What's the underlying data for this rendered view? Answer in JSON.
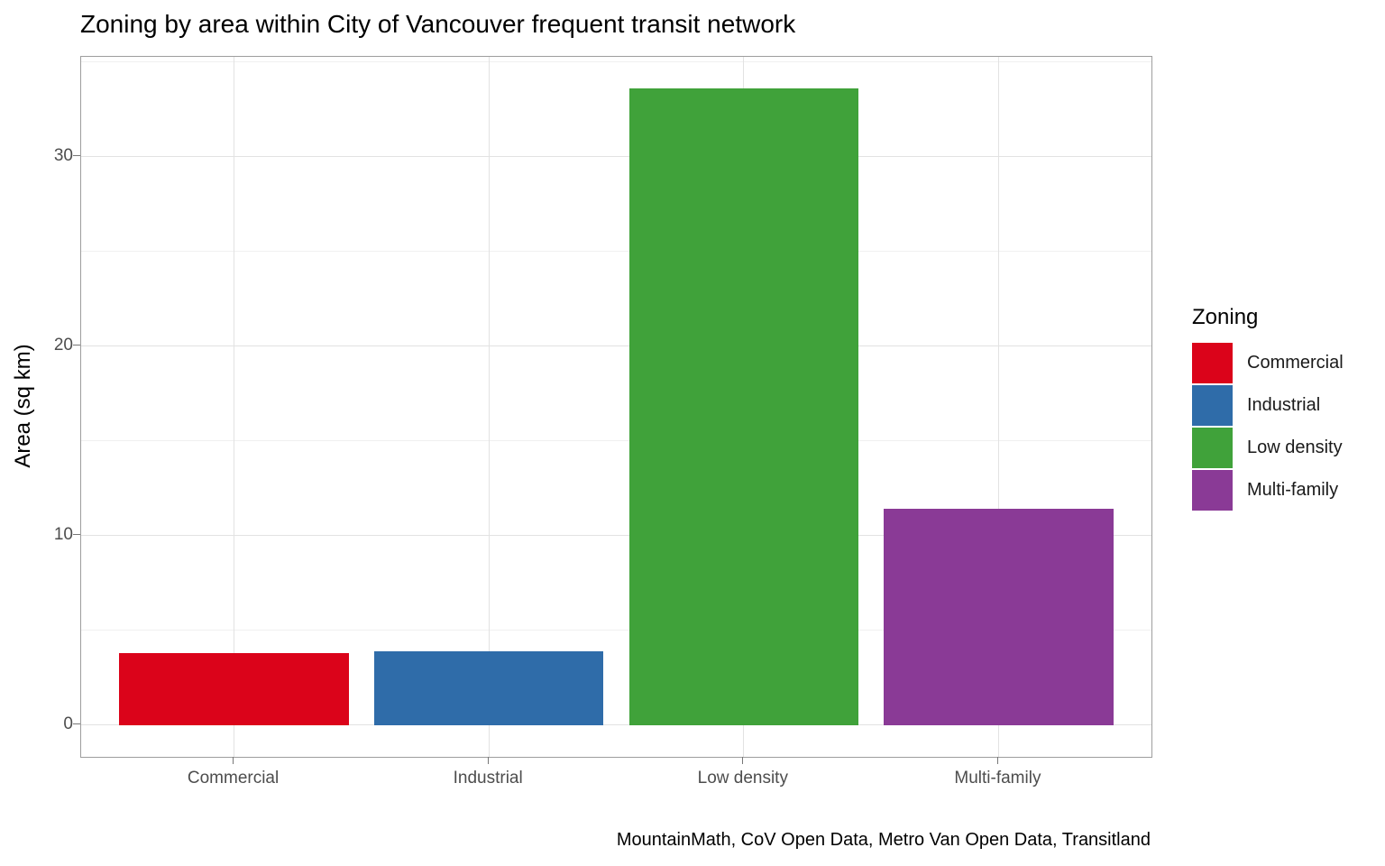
{
  "chart_data": {
    "type": "bar",
    "title": "Zoning by area within City of Vancouver frequent transit network",
    "xlabel": "",
    "ylabel": "Area (sq km)",
    "caption": "MountainMath, CoV Open Data, Metro Van Open Data, Transitland",
    "categories": [
      "Commercial",
      "Industrial",
      "Low density",
      "Multi-family"
    ],
    "values": [
      3.8,
      3.9,
      33.6,
      11.4
    ],
    "colors": [
      "#db031a",
      "#2f6ca9",
      "#40a23a",
      "#8a3a96"
    ],
    "y_ticks": [
      0,
      10,
      20,
      30
    ],
    "y_minor_ticks": [
      5,
      15,
      25,
      35
    ],
    "ylim": [
      0,
      35.3
    ],
    "grid": true,
    "bar_width_fraction": 0.9,
    "legend": {
      "title": "Zoning",
      "position": "right",
      "items": [
        {
          "label": "Commercial",
          "color": "#db031a"
        },
        {
          "label": "Industrial",
          "color": "#2f6ca9"
        },
        {
          "label": "Low density",
          "color": "#40a23a"
        },
        {
          "label": "Multi-family",
          "color": "#8a3a96"
        }
      ]
    }
  }
}
